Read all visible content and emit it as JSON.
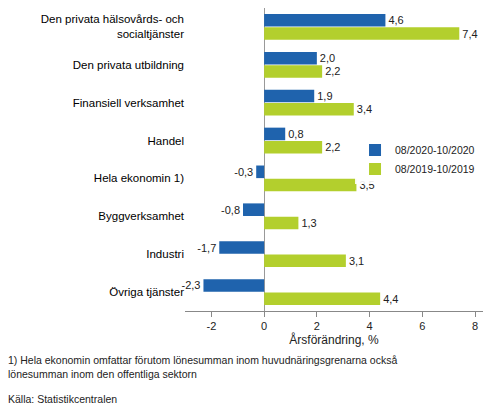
{
  "chart_data": {
    "type": "bar",
    "orientation": "horizontal",
    "categories": [
      "Den privata hälsovårds- och\nsocialtjänster",
      "Den privata utbildning",
      "Finansiell verksamhet",
      "Handel",
      "Hela ekonomin 1)",
      "Byggverksamhet",
      "Industri",
      "Övriga tjänster"
    ],
    "series": [
      {
        "name": "08/2020-10/2020",
        "color": "#1f63ad",
        "values": [
          4.6,
          2.0,
          1.9,
          0.8,
          -0.3,
          -0.8,
          -1.7,
          -2.3
        ],
        "value_labels": [
          "4,6",
          "2,0",
          "1,9",
          "0,8",
          "-0,3",
          "-0,8",
          "-1,7",
          "-2,3"
        ]
      },
      {
        "name": "08/2019-10/2019",
        "color": "#b3cf2d",
        "values": [
          7.4,
          2.2,
          3.4,
          2.2,
          3.5,
          1.3,
          3.1,
          4.4
        ],
        "value_labels": [
          "7,4",
          "2,2",
          "3,4",
          "2,2",
          "3,5",
          "1,3",
          "3,1",
          "4,4"
        ]
      }
    ],
    "x_label": "Årsförändring, %",
    "xlim": [
      -3,
      8.3
    ],
    "xticks": [
      -2,
      0,
      2,
      4,
      6,
      8
    ],
    "data_labels": true,
    "grid": false,
    "legend": "right",
    "annotations": [
      "1) Hela ekonomin omfattar förutom lönesumman inom huvudnäringsgrenarna också\nlönesumman inom den offentliga sektorn",
      "Källa: Statistikcentralen"
    ]
  }
}
